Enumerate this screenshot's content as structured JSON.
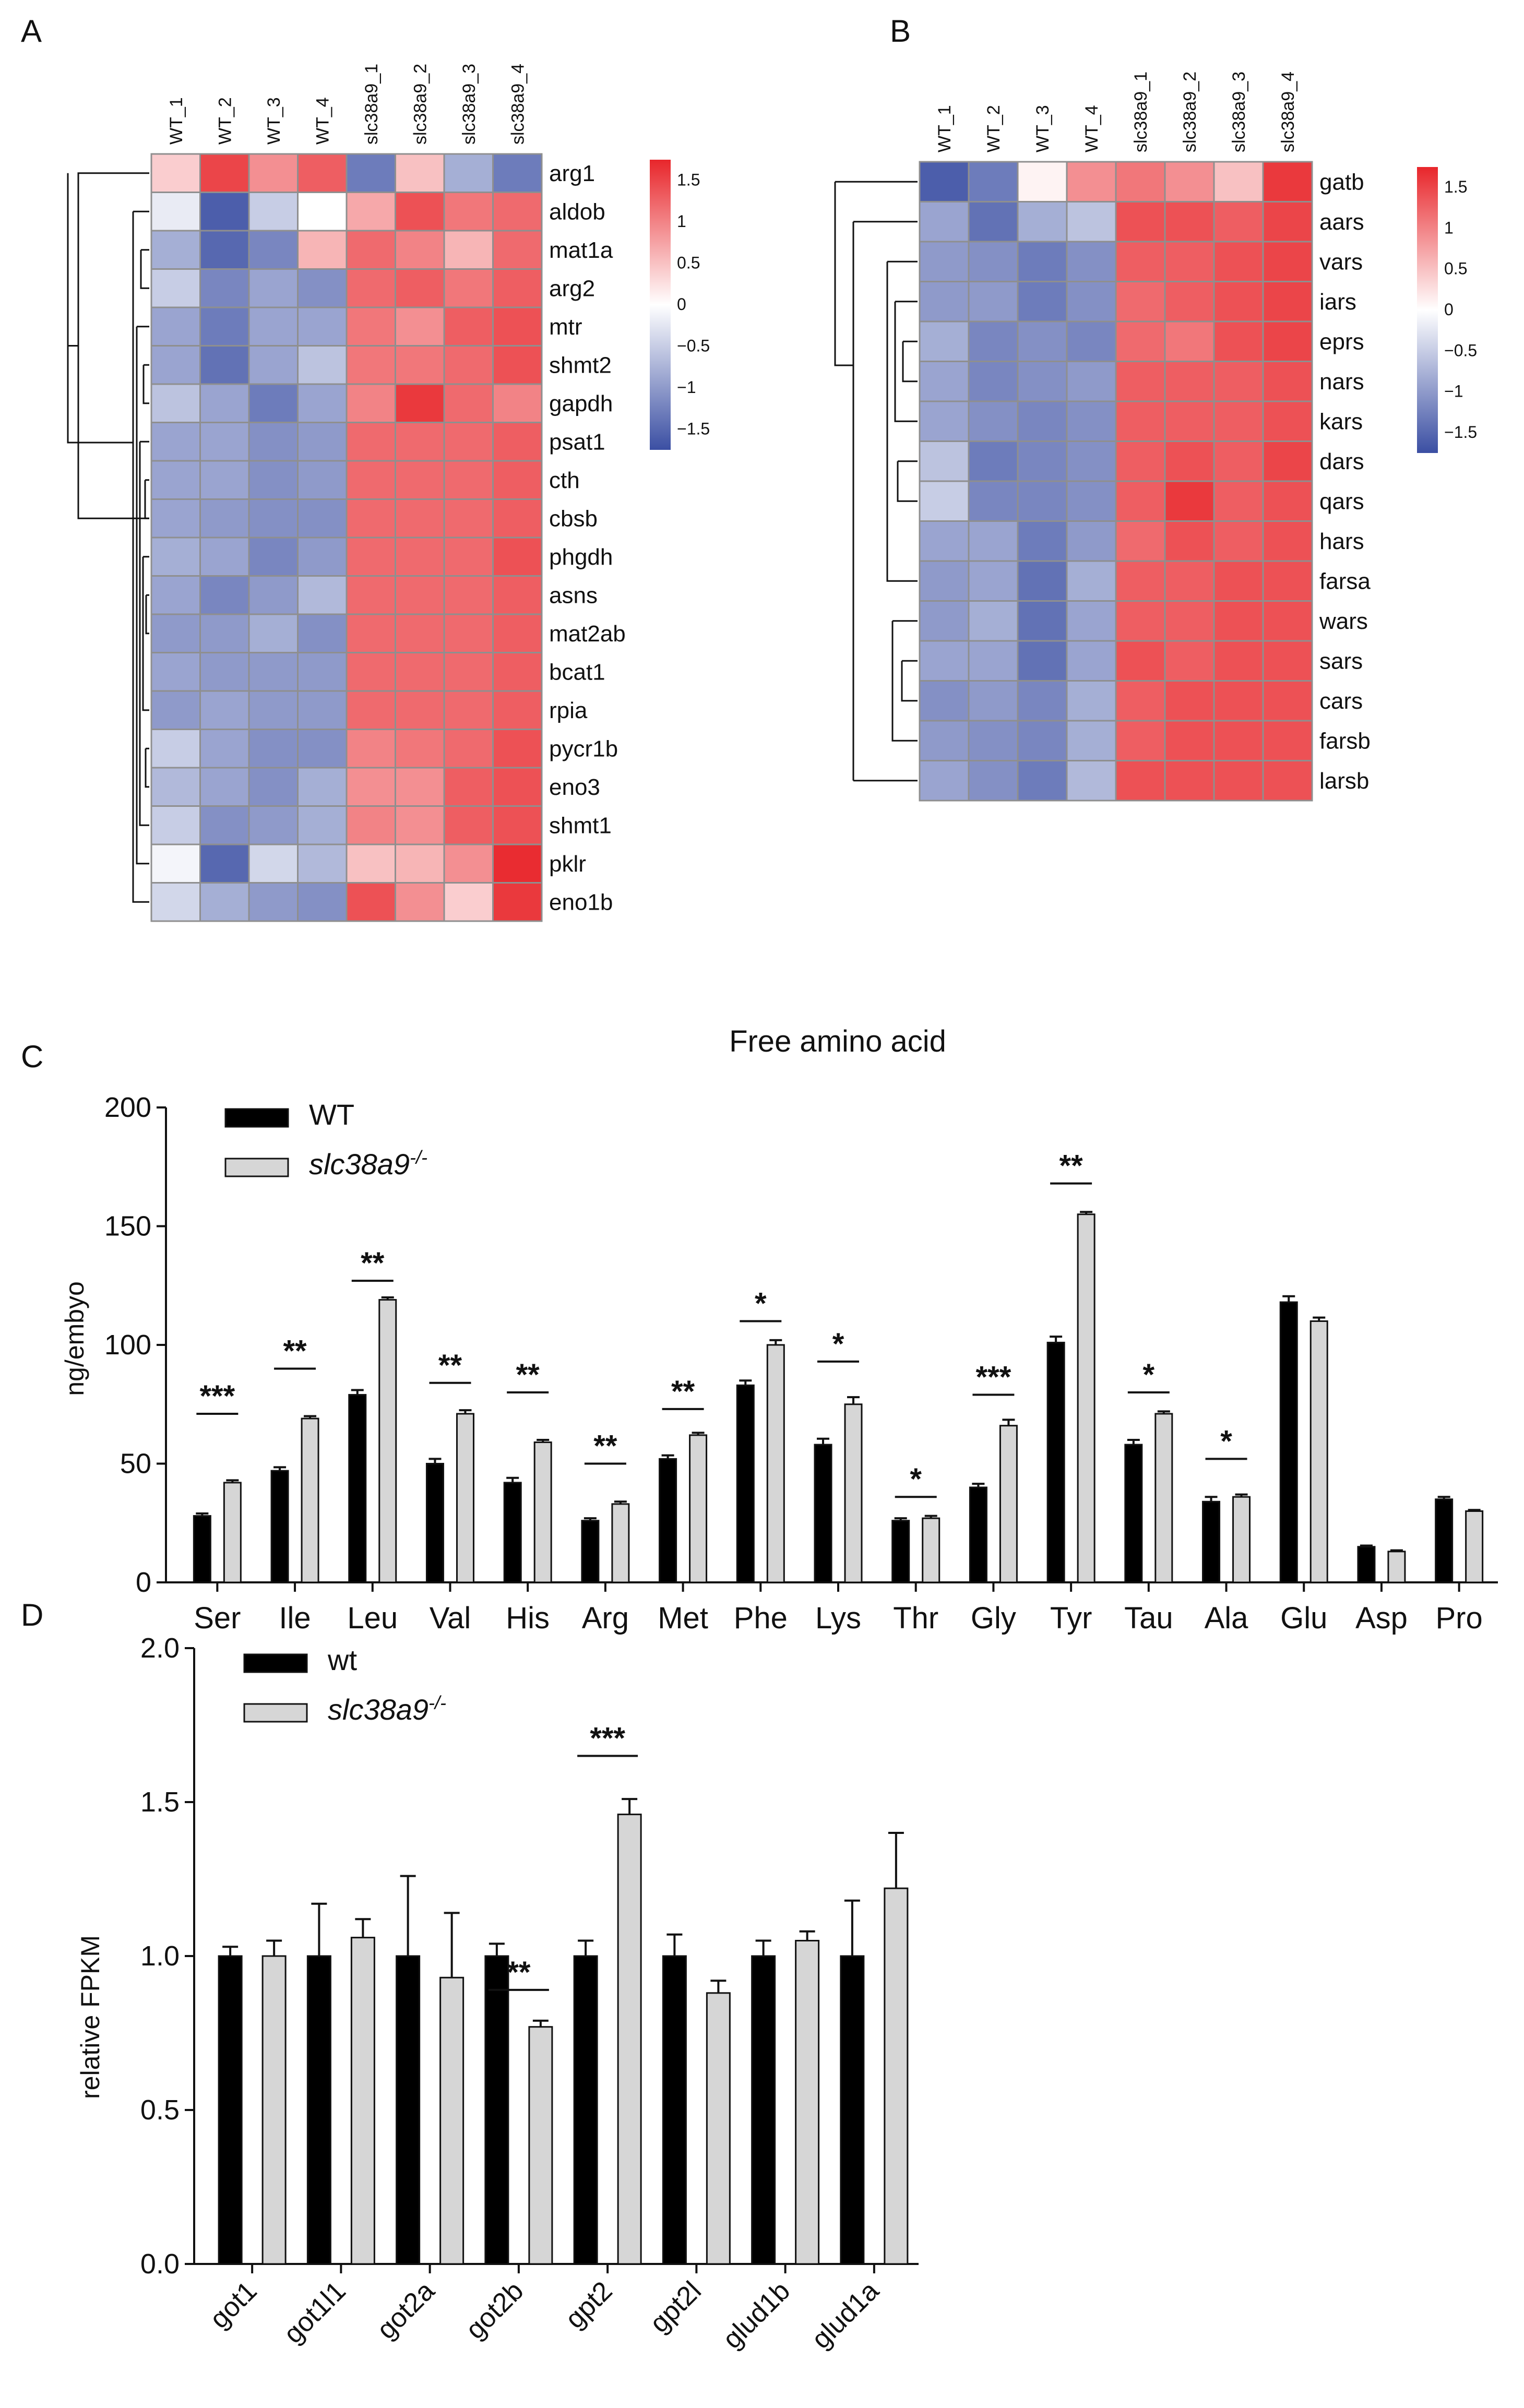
{
  "panels": {
    "A": "A",
    "B": "B",
    "C": "C",
    "D": "D"
  },
  "heatmap_colors": {
    "low": "#3b4fa3",
    "mid": "#ffffff",
    "high": "#e8262b",
    "grid": "#8f8f8f"
  },
  "bar_colors": {
    "wt": "#000000",
    "mutant": "#d6d6d6"
  },
  "chart_data": [
    {
      "type": "heatmap",
      "panel": "A",
      "columns": [
        "WT_1",
        "WT_2",
        "WT_3",
        "WT_4",
        "slc38a9_1",
        "slc38a9_2",
        "slc38a9_3",
        "slc38a9_4"
      ],
      "rows": [
        "arg1",
        "aldob",
        "mat1a",
        "arg2",
        "mtr",
        "shmt2",
        "gapdh",
        "psat1",
        "cth",
        "cbsb",
        "phgdh",
        "asns",
        "mat2ab",
        "bcat1",
        "rpia",
        "pycr1b",
        "eno3",
        "shmt1",
        "pklr",
        "eno1b"
      ],
      "values": [
        [
          0.4,
          1.5,
          0.9,
          1.3,
          -1.3,
          0.5,
          -0.8,
          -1.3
        ],
        [
          -0.2,
          -1.6,
          -0.5,
          0.0,
          0.7,
          1.4,
          1.1,
          1.2
        ],
        [
          -0.8,
          -1.5,
          -1.2,
          0.6,
          1.2,
          1.0,
          0.6,
          1.2
        ],
        [
          -0.5,
          -1.2,
          -0.9,
          -1.1,
          1.2,
          1.3,
          1.1,
          1.3
        ],
        [
          -0.9,
          -1.3,
          -0.9,
          -0.9,
          1.1,
          0.9,
          1.3,
          1.4
        ],
        [
          -0.9,
          -1.4,
          -0.9,
          -0.6,
          1.1,
          1.1,
          1.2,
          1.4
        ],
        [
          -0.6,
          -0.9,
          -1.3,
          -0.9,
          1.0,
          1.6,
          1.2,
          1.0
        ],
        [
          -0.9,
          -0.9,
          -1.1,
          -1.0,
          1.2,
          1.2,
          1.2,
          1.3
        ],
        [
          -0.9,
          -0.9,
          -1.1,
          -1.0,
          1.2,
          1.2,
          1.2,
          1.3
        ],
        [
          -0.9,
          -1.0,
          -1.1,
          -1.1,
          1.2,
          1.2,
          1.2,
          1.3
        ],
        [
          -0.8,
          -0.9,
          -1.2,
          -1.0,
          1.2,
          1.2,
          1.2,
          1.4
        ],
        [
          -0.9,
          -1.2,
          -1.0,
          -0.7,
          1.2,
          1.2,
          1.2,
          1.3
        ],
        [
          -1.0,
          -1.0,
          -0.8,
          -1.1,
          1.2,
          1.2,
          1.2,
          1.3
        ],
        [
          -0.9,
          -1.0,
          -1.0,
          -1.0,
          1.2,
          1.2,
          1.2,
          1.3
        ],
        [
          -1.0,
          -0.9,
          -1.0,
          -1.0,
          1.2,
          1.2,
          1.2,
          1.3
        ],
        [
          -0.5,
          -0.9,
          -1.1,
          -1.1,
          1.0,
          1.1,
          1.2,
          1.4
        ],
        [
          -0.7,
          -0.9,
          -1.1,
          -0.8,
          0.9,
          0.9,
          1.3,
          1.4
        ],
        [
          -0.5,
          -1.1,
          -1.0,
          -0.8,
          1.0,
          0.9,
          1.3,
          1.4
        ],
        [
          -0.1,
          -1.5,
          -0.4,
          -0.7,
          0.5,
          0.6,
          0.9,
          1.7
        ],
        [
          -0.4,
          -0.8,
          -1.0,
          -1.1,
          1.4,
          0.9,
          0.4,
          1.6
        ]
      ],
      "scale_ticks": [
        "1.5",
        "1",
        "0.5",
        "0",
        "−0.5",
        "−1",
        "−1.5"
      ],
      "scale_values": [
        1.5,
        1,
        0.5,
        0,
        -0.5,
        -1,
        -1.5
      ],
      "scale_range": [
        -1.75,
        1.75
      ]
    },
    {
      "type": "heatmap",
      "panel": "B",
      "columns": [
        "WT_1",
        "WT_2",
        "WT_3",
        "WT_4",
        "slc38a9_1",
        "slc38a9_2",
        "slc38a9_3",
        "slc38a9_4"
      ],
      "rows": [
        "gatb",
        "aars",
        "vars",
        "iars",
        "eprs",
        "nars",
        "kars",
        "dars",
        "qars",
        "hars",
        "farsa",
        "wars",
        "sars",
        "cars",
        "farsb",
        "larsb"
      ],
      "values": [
        [
          -1.6,
          -1.3,
          0.1,
          0.9,
          1.1,
          0.9,
          0.5,
          1.6
        ],
        [
          -0.9,
          -1.4,
          -0.8,
          -0.6,
          1.4,
          1.4,
          1.3,
          1.5
        ],
        [
          -1.0,
          -1.1,
          -1.3,
          -1.1,
          1.3,
          1.3,
          1.4,
          1.5
        ],
        [
          -1.0,
          -1.0,
          -1.3,
          -1.1,
          1.2,
          1.3,
          1.4,
          1.5
        ],
        [
          -0.8,
          -1.2,
          -1.1,
          -1.2,
          1.2,
          1.1,
          1.4,
          1.5
        ],
        [
          -0.9,
          -1.2,
          -1.1,
          -1.0,
          1.3,
          1.3,
          1.3,
          1.4
        ],
        [
          -0.9,
          -1.1,
          -1.2,
          -1.1,
          1.3,
          1.3,
          1.3,
          1.4
        ],
        [
          -0.6,
          -1.3,
          -1.2,
          -1.1,
          1.3,
          1.4,
          1.3,
          1.5
        ],
        [
          -0.5,
          -1.2,
          -1.2,
          -1.1,
          1.3,
          1.6,
          1.3,
          1.4
        ],
        [
          -0.9,
          -0.9,
          -1.3,
          -1.0,
          1.2,
          1.4,
          1.3,
          1.4
        ],
        [
          -1.0,
          -0.9,
          -1.4,
          -0.8,
          1.3,
          1.3,
          1.4,
          1.4
        ],
        [
          -1.0,
          -0.8,
          -1.4,
          -0.9,
          1.3,
          1.3,
          1.4,
          1.4
        ],
        [
          -0.9,
          -0.9,
          -1.4,
          -0.9,
          1.4,
          1.3,
          1.4,
          1.4
        ],
        [
          -1.1,
          -1.0,
          -1.2,
          -0.8,
          1.3,
          1.4,
          1.4,
          1.4
        ],
        [
          -1.0,
          -1.1,
          -1.2,
          -0.8,
          1.3,
          1.4,
          1.4,
          1.4
        ],
        [
          -0.9,
          -1.1,
          -1.3,
          -0.7,
          1.4,
          1.4,
          1.4,
          1.4
        ]
      ],
      "scale_ticks": [
        "1.5",
        "1",
        "0.5",
        "0",
        "−0.5",
        "−1",
        "−1.5"
      ],
      "scale_values": [
        1.5,
        1,
        0.5,
        0,
        -0.5,
        -1,
        -1.5
      ],
      "scale_range": [
        -1.75,
        1.75
      ]
    },
    {
      "type": "bar",
      "panel": "C",
      "title": "Free amino acid",
      "ylabel": "ng/embyo",
      "xlabel": "",
      "ylim": [
        0,
        200
      ],
      "yticks": [
        0,
        50,
        100,
        150,
        200
      ],
      "ytick_labels": [
        "0",
        "50",
        "100",
        "150",
        "200"
      ],
      "categories": [
        "Ser",
        "Ile",
        "Leu",
        "Val",
        "His",
        "Arg",
        "Met",
        "Phe",
        "Lys",
        "Thr",
        "Gly",
        "Tyr",
        "Tau",
        "Ala",
        "Glu",
        "Asp",
        "Pro"
      ],
      "legend": {
        "position": "top-left",
        "wt": "WT",
        "mutant_name": "slc38a9",
        "mutant_sup": "-/-"
      },
      "series": [
        {
          "name": "WT",
          "values": [
            28,
            47,
            79,
            50,
            42,
            26,
            52,
            83,
            58,
            26,
            40,
            101,
            58,
            34,
            118,
            15,
            35
          ],
          "errors": [
            1,
            1.5,
            2,
            2,
            2,
            1,
            1.5,
            2,
            2.5,
            1,
            1.5,
            2.5,
            2,
            2,
            2.5,
            0.5,
            1
          ]
        },
        {
          "name": "slc38a9-/-",
          "values": [
            42,
            69,
            119,
            71,
            59,
            33,
            62,
            100,
            75,
            27,
            66,
            155,
            71,
            36,
            110,
            13,
            30
          ],
          "errors": [
            1,
            1,
            1,
            1.5,
            1,
            1,
            1,
            2,
            3,
            1,
            2.5,
            1,
            1,
            1,
            1.5,
            0.5,
            0.5
          ]
        }
      ],
      "significance": [
        "***",
        "**",
        "**",
        "**",
        "**",
        "**",
        "**",
        "*",
        "*",
        "*",
        "***",
        "**",
        "*",
        "*",
        "",
        "",
        ""
      ],
      "sig_y": [
        71,
        90,
        127,
        84,
        80,
        50,
        73,
        110,
        93,
        36,
        79,
        168,
        80,
        52,
        null,
        null,
        null
      ]
    },
    {
      "type": "bar",
      "panel": "D",
      "ylabel": "relative FPKM",
      "xlabel": "",
      "ylim": [
        0,
        2.0
      ],
      "yticks": [
        0,
        0.5,
        1.0,
        1.5,
        2.0
      ],
      "ytick_labels": [
        "0.0",
        "0.5",
        "1.0",
        "1.5",
        "2.0"
      ],
      "categories": [
        "got1",
        "got1l1",
        "got2a",
        "got2b",
        "gpt2",
        "gpt2l",
        "glud1b",
        "glud1a"
      ],
      "legend": {
        "position": "top-left",
        "wt": "wt",
        "mutant_name": "slc38a9",
        "mutant_sup": "-/-"
      },
      "series": [
        {
          "name": "wt",
          "values": [
            1.0,
            1.0,
            1.0,
            1.0,
            1.0,
            1.0,
            1.0,
            1.0
          ],
          "errors": [
            0.03,
            0.17,
            0.26,
            0.04,
            0.05,
            0.07,
            0.05,
            0.18
          ]
        },
        {
          "name": "slc38a9-/-",
          "values": [
            1.0,
            1.06,
            0.93,
            0.77,
            1.46,
            0.88,
            1.05,
            1.22
          ],
          "errors": [
            0.05,
            0.06,
            0.21,
            0.02,
            0.05,
            0.04,
            0.03,
            0.18
          ]
        }
      ],
      "significance": [
        "",
        "",
        "",
        "**",
        "***",
        "",
        "",
        ""
      ],
      "sig_y": [
        null,
        null,
        null,
        0.89,
        1.65,
        null,
        null,
        null
      ]
    }
  ]
}
